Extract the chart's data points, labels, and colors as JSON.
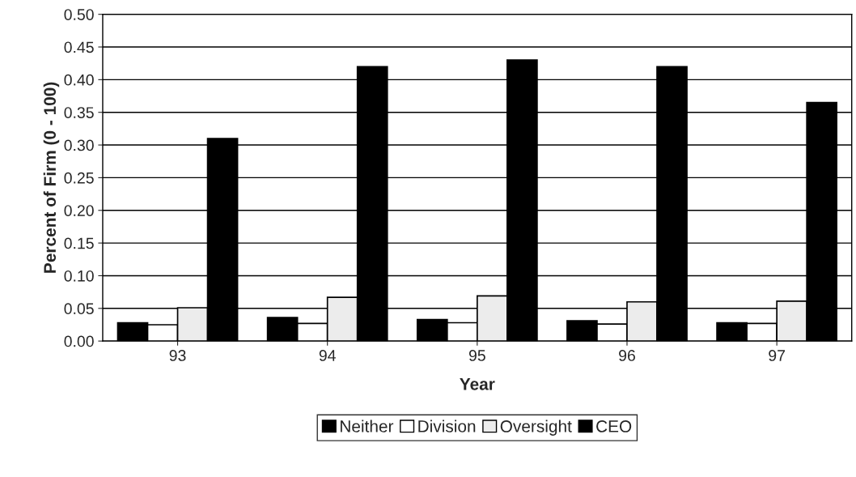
{
  "chart_data": {
    "type": "bar",
    "xlabel": "Year",
    "ylabel": "Percent of Firm (0 - 100)",
    "categories": [
      "93",
      "94",
      "95",
      "96",
      "97"
    ],
    "series": [
      {
        "name": "Neither",
        "color": "#000000",
        "values": [
          0.028,
          0.036,
          0.033,
          0.031,
          0.028
        ]
      },
      {
        "name": "Division",
        "color": "#ffffff",
        "values": [
          0.025,
          0.027,
          0.028,
          0.026,
          0.027
        ]
      },
      {
        "name": "Oversight",
        "color": "#ececec",
        "values": [
          0.051,
          0.067,
          0.069,
          0.06,
          0.061
        ]
      },
      {
        "name": "CEO",
        "color": "#000000",
        "values": [
          0.31,
          0.42,
          0.43,
          0.42,
          0.365
        ]
      }
    ],
    "ylim": [
      0,
      0.5
    ],
    "yticks": [
      {
        "value": 0,
        "label": "0.00"
      },
      0.05,
      {
        "value": 0.1,
        "label": "0.10"
      },
      0.15,
      {
        "value": 0.2,
        "label": "0.20"
      },
      0.25,
      {
        "value": 0.3,
        "label": "0.30"
      },
      0.35,
      {
        "value": 0.4,
        "label": "0.40"
      },
      0.45,
      {
        "value": 0.5,
        "label": "0.50"
      }
    ],
    "grid": "y",
    "legend": "bottom"
  }
}
